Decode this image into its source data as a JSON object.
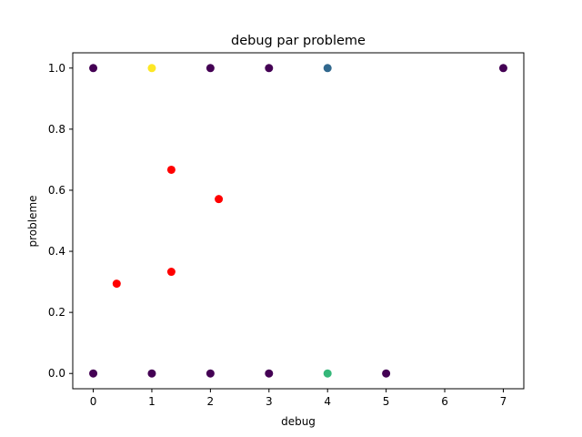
{
  "chart_data": {
    "type": "scatter",
    "title": "debug par probleme",
    "xlabel": "debug",
    "ylabel": "probleme",
    "xlim": [
      -0.35,
      7.35
    ],
    "ylim": [
      -0.05,
      1.05
    ],
    "xticks": [
      0,
      1,
      2,
      3,
      4,
      5,
      6,
      7
    ],
    "yticks": [
      0.0,
      0.2,
      0.4,
      0.6,
      0.8,
      1.0
    ],
    "xtick_labels": [
      "0",
      "1",
      "2",
      "3",
      "4",
      "5",
      "6",
      "7"
    ],
    "ytick_labels": [
      "0.0",
      "0.2",
      "0.4",
      "0.6",
      "0.8",
      "1.0"
    ],
    "grid": false,
    "points": [
      {
        "x": 0,
        "y": 1.0,
        "color": "#440154"
      },
      {
        "x": 1,
        "y": 1.0,
        "color": "#fde725"
      },
      {
        "x": 2,
        "y": 1.0,
        "color": "#440154"
      },
      {
        "x": 3,
        "y": 1.0,
        "color": "#440154"
      },
      {
        "x": 4,
        "y": 1.0,
        "color": "#31688e"
      },
      {
        "x": 7,
        "y": 1.0,
        "color": "#440154"
      },
      {
        "x": 0,
        "y": 0.0,
        "color": "#440154"
      },
      {
        "x": 1,
        "y": 0.0,
        "color": "#440154"
      },
      {
        "x": 2,
        "y": 0.0,
        "color": "#440154"
      },
      {
        "x": 3,
        "y": 0.0,
        "color": "#440154"
      },
      {
        "x": 4,
        "y": 0.0,
        "color": "#35b779"
      },
      {
        "x": 5,
        "y": 0.0,
        "color": "#440154"
      },
      {
        "x": 0.4,
        "y": 0.294,
        "color": "#ff0000"
      },
      {
        "x": 1.333,
        "y": 0.667,
        "color": "#ff0000"
      },
      {
        "x": 1.333,
        "y": 0.333,
        "color": "#ff0000"
      },
      {
        "x": 2.143,
        "y": 0.571,
        "color": "#ff0000"
      }
    ]
  }
}
